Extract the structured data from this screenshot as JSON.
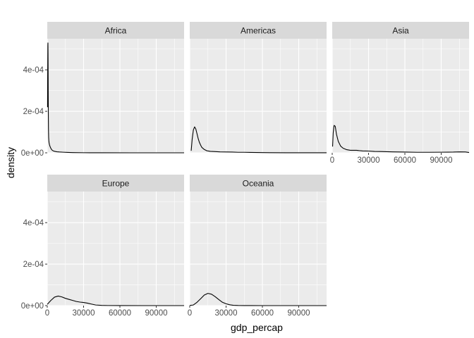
{
  "chart_data": {
    "type": "area",
    "facet_variable": "continent",
    "xlabel": "gdp_percap",
    "ylabel": "density",
    "xlim": [
      0,
      113000
    ],
    "ylim": [
      0,
      0.00055
    ],
    "x_ticks": [
      0,
      30000,
      60000,
      90000
    ],
    "x_tick_labels": [
      "0",
      "30000",
      "60000",
      "90000"
    ],
    "y_ticks": [
      0,
      0.0002,
      0.0004
    ],
    "y_tick_labels": [
      "0e+00",
      "2e-04",
      "4e-04"
    ],
    "grid": true,
    "colors": {
      "panel_bg": "#ebebeb",
      "grid_major": "#ffffff",
      "strip_bg": "#d9d9d9",
      "line": "#000000"
    },
    "panels": [
      {
        "name": "Africa",
        "x": [
          241,
          320,
          400,
          480,
          560,
          640,
          720,
          800,
          900,
          1000,
          1150,
          1300,
          1500,
          1800,
          2200,
          2700,
          3300,
          4000,
          5000,
          6500,
          8000,
          10000,
          13000,
          17000,
          21000,
          30000,
          45000,
          70000,
          90000,
          113000
        ],
        "y": [
          0.00022,
          0.00036,
          0.00044,
          0.00052,
          0.00053,
          0.00048,
          0.00038,
          0.00028,
          0.00018,
          0.000115,
          7.5e-05,
          6e-05,
          4.8e-05,
          4e-05,
          3.2e-05,
          2.5e-05,
          1.8e-05,
          1.3e-05,
          9e-06,
          6.5e-06,
          5e-06,
          4e-06,
          3e-06,
          2e-06,
          1.2e-06,
          4e-07,
          1e-07,
          3e-08,
          1e-08,
          5e-09
        ]
      },
      {
        "name": "Americas",
        "x": [
          1200,
          2000,
          3000,
          4000,
          5000,
          6000,
          7000,
          8000,
          9000,
          10000,
          12000,
          14000,
          17000,
          20000,
          25000,
          30000,
          35000,
          40000,
          45000,
          50000,
          60000,
          80000,
          113000
        ],
        "y": [
          1e-05,
          6.5e-05,
          0.00011,
          0.000125,
          0.000115,
          9.2e-05,
          6.8e-05,
          5e-05,
          3.7e-05,
          2.6e-05,
          1.6e-05,
          1e-05,
          7e-06,
          6e-06,
          4.5e-06,
          4e-06,
          3.5e-06,
          2.5e-06,
          2.5e-06,
          2e-06,
          1e-06,
          2e-07,
          1e-07
        ]
      },
      {
        "name": "Asia",
        "x": [
          300,
          800,
          1500,
          2500,
          3500,
          5000,
          7000,
          9000,
          12000,
          15000,
          20000,
          25000,
          30000,
          35000,
          40000,
          50000,
          60000,
          70000,
          80000,
          90000,
          100000,
          105000,
          110000,
          113000
        ],
        "y": [
          3e-05,
          9.5e-05,
          0.000132,
          0.000128,
          9e-05,
          5.5e-05,
          3.2e-05,
          2.2e-05,
          1.5e-05,
          1.2e-05,
          1.2e-05,
          9e-06,
          8.5e-06,
          6.5e-06,
          6e-06,
          4.5e-06,
          3.5e-06,
          2.5e-06,
          2.5e-06,
          3e-06,
          3.5e-06,
          4.5e-06,
          4e-06,
          1.5e-06
        ]
      },
      {
        "name": "Europe",
        "x": [
          0,
          3000,
          6000,
          9000,
          12000,
          15000,
          18000,
          21000,
          24000,
          27000,
          30000,
          33000,
          36000,
          40000,
          45000,
          50000,
          60000,
          80000,
          113000
        ],
        "y": [
          6e-06,
          2.5e-05,
          4.1e-05,
          4.6e-05,
          4.2e-05,
          3.5e-05,
          3e-05,
          2.5e-05,
          2e-05,
          1.7e-05,
          1.5e-05,
          1.2e-05,
          8e-06,
          3e-06,
          1e-06,
          4e-07,
          1e-07,
          2e-08,
          1e-08
        ]
      },
      {
        "name": "Oceania",
        "x": [
          0,
          3000,
          6000,
          9000,
          12000,
          15000,
          18000,
          21000,
          24000,
          27000,
          30000,
          33000,
          36000,
          40000,
          45000,
          50000,
          60000,
          80000,
          113000
        ],
        "y": [
          5e-07,
          3e-06,
          1.6e-05,
          3.3e-05,
          5.1e-05,
          5.9e-05,
          5.5e-05,
          4.3e-05,
          2.9e-05,
          1.6e-05,
          9e-06,
          4e-06,
          1.5e-06,
          5e-07,
          2e-07,
          1e-07,
          2e-08,
          1e-08,
          1e-08
        ]
      }
    ]
  }
}
